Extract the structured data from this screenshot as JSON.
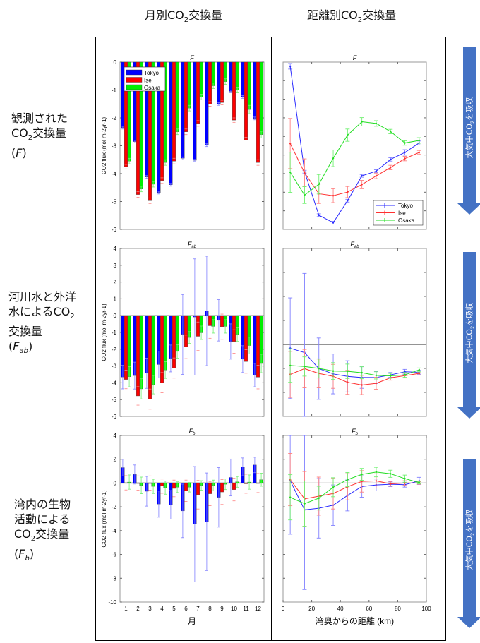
{
  "headers": {
    "monthly": {
      "pre": "月別CO",
      "sub": "2",
      "post": "交換量"
    },
    "distance": {
      "pre": "距離別CO",
      "sub": "2",
      "post": "交換量"
    }
  },
  "rows": [
    {
      "line1": "観測された",
      "line2_pre": "CO",
      "line2_sub": "2",
      "line2_post": "交換量",
      "symbol": "F",
      "symbol_sub": ""
    },
    {
      "line1": "河川水と外洋",
      "line2_pre": "水によるCO",
      "line2_sub": "2",
      "line2_post": "",
      "line3": "交換量",
      "symbol": "F",
      "symbol_sub": "ab"
    },
    {
      "line1": "湾内の生物",
      "line2_pre": "活動による",
      "line2_sub": "",
      "line2_post": "",
      "line3_pre": "CO",
      "line3_sub": "2",
      "line3_post": "交換量",
      "symbol": "F",
      "symbol_sub": "b"
    }
  ],
  "arrow_label": {
    "pre": "大気中CO",
    "sub": "2",
    "post": "を吸収"
  },
  "colors": {
    "Tokyo": "#0000ff",
    "Ise": "#ff0000",
    "Osaka": "#00ee00",
    "arrow": "#4472c4"
  },
  "chart_data": [
    {
      "type": "bar",
      "title": "F",
      "title_sub": "",
      "xlabel": "",
      "ylabel": "CO2 flux (mol m-2yr-1)",
      "ylim": [
        -6,
        0
      ],
      "yticks": [
        0,
        -1,
        -2,
        -3,
        -4,
        -5,
        -6
      ],
      "ytick_labels_shown": true,
      "categories": [
        "1",
        "2",
        "3",
        "4",
        "5",
        "6",
        "7",
        "8",
        "9",
        "10",
        "11",
        "12"
      ],
      "xtick_labels_shown": false,
      "legend": "top-left",
      "series": [
        {
          "name": "Tokyo",
          "values": [
            -2.35,
            -2.85,
            -4.12,
            -4.68,
            -4.4,
            -3.45,
            -3.52,
            -2.98,
            -1.5,
            -1.05,
            -1.25,
            -2.02
          ],
          "err": [
            0.05,
            0.05,
            0.05,
            0.05,
            0.05,
            0.05,
            0.03,
            0.05,
            0.05,
            0.05,
            0.05,
            0.05
          ]
        },
        {
          "name": "Ise",
          "values": [
            -3.75,
            -4.75,
            -4.97,
            -4.25,
            -3.55,
            -2.5,
            -2.2,
            -1.5,
            -1.45,
            -2.08,
            -2.8,
            -3.6
          ],
          "err": [
            0.08,
            0.1,
            0.1,
            0.1,
            0.1,
            0.1,
            0.1,
            0.08,
            0.08,
            0.08,
            0.1,
            0.1
          ]
        },
        {
          "name": "Osaka",
          "values": [
            -3.55,
            -4.55,
            -4.38,
            -3.6,
            -2.5,
            -1.65,
            -1.25,
            -0.85,
            -0.7,
            -1.0,
            -1.7,
            -2.6
          ],
          "err": [
            0.1,
            0.1,
            0.1,
            0.1,
            0.1,
            0.1,
            0.1,
            0.1,
            0.1,
            0.1,
            0.15,
            0.12
          ]
        }
      ]
    },
    {
      "type": "line",
      "title": "F",
      "title_sub": "",
      "xlabel": "",
      "ylim": [
        -6,
        0
      ],
      "ytick_labels_shown": false,
      "zero_line": false,
      "x": [
        5,
        15,
        25,
        35,
        45,
        55,
        65,
        75,
        85,
        95
      ],
      "xlim": [
        0,
        100
      ],
      "xtick_labels_shown": false,
      "legend": "bottom-right",
      "series": [
        {
          "name": "Tokyo",
          "values": [
            -0.15,
            -3.93,
            -5.49,
            -5.76,
            -4.97,
            -4.08,
            -3.91,
            -3.49,
            -3.24,
            -2.9
          ],
          "err": [
            0.1,
            0.05,
            0.05,
            0.05,
            0.05,
            0.05,
            0.05,
            0.06,
            0.1,
            0.07
          ]
        },
        {
          "name": "Ise",
          "values": [
            -2.92,
            -3.97,
            -4.72,
            -4.79,
            -4.66,
            -4.39,
            -4.08,
            -3.78,
            -3.46,
            -3.24
          ],
          "err": [
            0.9,
            0.5,
            0.35,
            0.25,
            0.2,
            0.15,
            0.1,
            0.08,
            0.08,
            0.07
          ]
        },
        {
          "name": "Osaka",
          "values": [
            -3.95,
            -4.77,
            -4.38,
            -3.45,
            -2.62,
            -2.14,
            -2.2,
            -2.49,
            -2.9,
            -2.81
          ],
          "err": [
            0.72,
            0.3,
            0.35,
            0.3,
            0.22,
            0.15,
            0.1,
            0.08,
            0.08,
            0.1
          ]
        }
      ]
    },
    {
      "type": "bar",
      "title": "F",
      "title_sub": "ab",
      "xlabel": "",
      "ylabel": "CO2 flux (mol m-2yr-1)",
      "ylim": [
        -6,
        4
      ],
      "yticks": [
        4,
        3,
        2,
        1,
        0,
        -1,
        -2,
        -3,
        -4,
        -5,
        -6
      ],
      "ytick_labels_shown": true,
      "categories": [
        "1",
        "2",
        "3",
        "4",
        "5",
        "6",
        "7",
        "8",
        "9",
        "10",
        "11",
        "12"
      ],
      "xtick_labels_shown": false,
      "series": [
        {
          "name": "Tokyo",
          "values": [
            -3.66,
            -3.57,
            -3.43,
            -2.91,
            -2.55,
            -1.12,
            -0.08,
            0.28,
            -0.28,
            -1.54,
            -2.59,
            -3.54
          ],
          "err": [
            0.7,
            0.8,
            0.9,
            0.8,
            0.8,
            2.38,
            3.46,
            3.26,
            1.23,
            1.05,
            0.8,
            0.7
          ]
        },
        {
          "name": "Ise",
          "values": [
            -3.8,
            -4.78,
            -4.97,
            -3.99,
            -3.12,
            -1.86,
            -1.23,
            -0.6,
            -0.66,
            -1.54,
            -2.73,
            -3.66
          ],
          "err": [
            0.55,
            0.55,
            0.6,
            0.6,
            0.6,
            0.7,
            0.85,
            0.75,
            0.75,
            0.7,
            0.7,
            0.7
          ]
        },
        {
          "name": "Osaka",
          "values": [
            -3.64,
            -4.36,
            -4.11,
            -3.24,
            -2.13,
            -1.3,
            -1.02,
            -0.64,
            -0.64,
            -1.12,
            -1.78,
            -2.85
          ],
          "err": [
            0.6,
            0.6,
            0.55,
            0.5,
            0.4,
            0.35,
            0.4,
            0.4,
            0.4,
            0.4,
            0.5,
            0.55
          ]
        }
      ]
    },
    {
      "type": "line",
      "title": "F",
      "title_sub": "ab",
      "xlabel": "",
      "ylim": [
        -3,
        4
      ],
      "ytick_labels_shown": false,
      "zero_line": true,
      "x": [
        5,
        15,
        25,
        35,
        45,
        55,
        65,
        75,
        85,
        95
      ],
      "xlim": [
        0,
        100
      ],
      "xtick_labels_shown": false,
      "series": [
        {
          "name": "Tokyo",
          "values": [
            -0.16,
            -0.34,
            -1.01,
            -1.23,
            -1.33,
            -1.38,
            -1.38,
            -1.27,
            -1.14,
            -1.16
          ],
          "err": [
            2.1,
            3.3,
            1.28,
            0.83,
            0.65,
            0.45,
            0.25,
            0.1,
            0.1,
            0.08
          ]
        },
        {
          "name": "Ise",
          "values": [
            -1.25,
            -1.01,
            -1.21,
            -1.33,
            -1.58,
            -1.69,
            -1.62,
            -1.39,
            -1.3,
            -1.21
          ],
          "err": [
            0.96,
            0.8,
            0.6,
            0.5,
            0.5,
            0.4,
            0.25,
            0.1,
            0.1,
            0.06
          ]
        },
        {
          "name": "Osaka",
          "values": [
            -0.88,
            -0.92,
            -1.0,
            -1.11,
            -1.12,
            -1.18,
            -1.29,
            -1.31,
            -1.27,
            -1.06
          ],
          "err": [
            0.7,
            0.4,
            0.4,
            0.35,
            0.3,
            0.25,
            0.15,
            0.1,
            0.1,
            0.08
          ]
        }
      ]
    },
    {
      "type": "bar",
      "title": "F",
      "title_sub": "b",
      "xlabel": "月",
      "ylabel": "CO2 flux (mol m-2yr-1)",
      "ylim": [
        -10,
        4
      ],
      "yticks": [
        4,
        2,
        0,
        -2,
        -4,
        -6,
        -8,
        -10
      ],
      "ytick_labels_shown": true,
      "categories": [
        "1",
        "2",
        "3",
        "4",
        "5",
        "6",
        "7",
        "8",
        "9",
        "10",
        "11",
        "12"
      ],
      "xtick_labels_shown": true,
      "series": [
        {
          "name": "Tokyo",
          "values": [
            1.3,
            0.72,
            -0.69,
            -1.77,
            -1.83,
            -2.34,
            -3.46,
            -3.25,
            -1.2,
            0.47,
            1.36,
            1.52
          ],
          "err": [
            0.7,
            0.8,
            1.25,
            1.1,
            1.2,
            2.25,
            4.85,
            4.1,
            2.5,
            1.55,
            0.75,
            0.65
          ]
        },
        {
          "name": "Ise",
          "values": [
            0.02,
            0.0,
            0.0,
            -0.26,
            -0.45,
            -0.65,
            -0.98,
            -0.9,
            -0.75,
            -0.55,
            -0.06,
            0.0
          ],
          "err": [
            0.6,
            0.6,
            0.6,
            0.6,
            0.7,
            0.9,
            1.2,
            1.0,
            1.05,
            0.95,
            0.8,
            0.8
          ]
        },
        {
          "name": "Osaka",
          "values": [
            0.08,
            -0.2,
            -0.28,
            -0.39,
            -0.35,
            -0.35,
            -0.2,
            -0.2,
            -0.1,
            0.1,
            0.08,
            0.28
          ],
          "err": [
            0.6,
            0.7,
            0.6,
            0.55,
            0.45,
            0.4,
            0.4,
            0.45,
            0.45,
            0.45,
            0.6,
            0.55
          ]
        }
      ]
    },
    {
      "type": "line",
      "title": "F",
      "title_sub": "b",
      "xlabel": "湾奥からの距離 (km)",
      "ylim": [
        -10,
        4
      ],
      "ytick_labels_shown": false,
      "zero_line": true,
      "x": [
        5,
        15,
        25,
        35,
        45,
        55,
        65,
        75,
        85,
        95
      ],
      "xlim": [
        0,
        100
      ],
      "xticks": [
        0,
        20,
        40,
        60,
        80,
        100
      ],
      "xtick_labels_shown": true,
      "series": [
        {
          "name": "Tokyo",
          "values": [
            0.2,
            -2.25,
            -2.12,
            -1.86,
            -1.04,
            -0.29,
            -0.16,
            -0.1,
            -0.14,
            0.18
          ],
          "err": [
            4.5,
            6.7,
            2.5,
            1.7,
            1.3,
            0.9,
            0.5,
            0.2,
            0.2,
            0.3
          ]
        },
        {
          "name": "Ise",
          "values": [
            0.29,
            -1.33,
            -1.1,
            -0.88,
            -0.31,
            0.14,
            0.18,
            -0.06,
            0.0,
            0.0
          ],
          "err": [
            2.2,
            2.3,
            1.6,
            1.3,
            1.1,
            0.9,
            0.6,
            0.2,
            0.2,
            0.1
          ]
        },
        {
          "name": "Osaka",
          "values": [
            -1.2,
            -1.73,
            -1.27,
            -0.35,
            0.29,
            0.73,
            0.92,
            0.78,
            0.37,
            0.04
          ],
          "err": [
            1.9,
            1.9,
            1.0,
            0.8,
            0.6,
            0.5,
            0.4,
            0.3,
            0.3,
            0.1
          ]
        }
      ]
    }
  ]
}
